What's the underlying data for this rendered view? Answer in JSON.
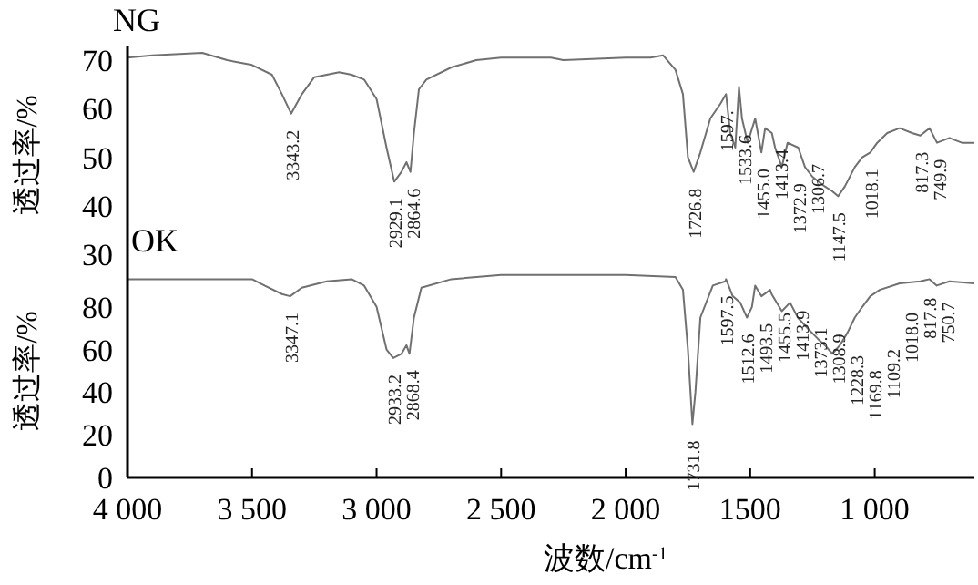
{
  "chart_data": [
    {
      "type": "line",
      "title": "NG",
      "ylabel": "透过率/%",
      "xlim": [
        4000,
        600
      ],
      "ylim": [
        28,
        73
      ],
      "yticks": [
        30,
        40,
        50,
        60,
        70
      ],
      "tick_labels": "y",
      "color": "#707070",
      "x": [
        4000,
        3900,
        3700,
        3600,
        3500,
        3420,
        3380,
        3343,
        3300,
        3250,
        3150,
        3100,
        3050,
        3000,
        2960,
        2929,
        2900,
        2880,
        2864,
        2850,
        2830,
        2800,
        2700,
        2600,
        2500,
        2300,
        2250,
        2000,
        1900,
        1850,
        1800,
        1770,
        1750,
        1727,
        1700,
        1660,
        1620,
        1597,
        1580,
        1560,
        1545,
        1533,
        1510,
        1480,
        1455,
        1440,
        1413,
        1400,
        1373,
        1350,
        1307,
        1280,
        1250,
        1200,
        1170,
        1147,
        1120,
        1080,
        1050,
        1018,
        990,
        950,
        900,
        850,
        817,
        780,
        750,
        700,
        650,
        600
      ],
      "values": [
        70.5,
        71,
        71.5,
        70,
        69,
        67,
        63,
        59,
        63,
        66.5,
        67.5,
        67,
        66,
        62,
        52,
        45,
        47,
        49,
        47,
        55,
        64,
        66,
        68.5,
        70,
        70.5,
        70.5,
        70,
        70.5,
        70.5,
        71,
        68,
        63,
        50,
        47,
        51,
        58,
        61,
        63,
        55,
        52,
        64.5,
        58,
        53,
        58,
        51,
        56,
        55,
        52,
        48,
        53,
        52,
        48,
        46,
        44,
        43,
        42,
        44,
        48,
        50,
        51,
        53,
        55,
        56,
        55,
        54.5,
        56,
        53,
        54,
        53,
        53
      ],
      "annotations": [
        {
          "text": "3343.2",
          "x": 3343,
          "y": 59
        },
        {
          "text": "2929.1",
          "x": 2929,
          "y": 45
        },
        {
          "text": "2864.6",
          "x": 2864,
          "y": 47
        },
        {
          "text": "1726.8",
          "x": 1727,
          "y": 47
        },
        {
          "text": "1597.",
          "x": 1597,
          "y": 63
        },
        {
          "text": "1533.6",
          "x": 1533,
          "y": 58
        },
        {
          "text": "1455.0",
          "x": 1455,
          "y": 51
        },
        {
          "text": "1413.4",
          "x": 1413,
          "y": 55
        },
        {
          "text": "1372.9",
          "x": 1373,
          "y": 48
        },
        {
          "text": "1306.7",
          "x": 1307,
          "y": 52
        },
        {
          "text": "1147.5",
          "x": 1147,
          "y": 42
        },
        {
          "text": "1018.1",
          "x": 1018,
          "y": 51
        },
        {
          "text": "817.3",
          "x": 817,
          "y": 54.5
        },
        {
          "text": "749.9",
          "x": 750,
          "y": 53
        }
      ]
    },
    {
      "type": "line",
      "title": "OK",
      "ylabel": "透过率/%",
      "xlabel": "波数/cm$^{-1}$",
      "xlim": [
        4000,
        600
      ],
      "xticks": [
        {
          "value": 4000,
          "label": "4 000"
        },
        {
          "value": 3500,
          "label": "3 500"
        },
        {
          "value": 3000,
          "label": "3 000"
        },
        {
          "value": 2500,
          "label": "2 500"
        },
        {
          "value": 2000,
          "label": "2 000"
        },
        1500,
        {
          "value": 1000,
          "label": "1 000"
        }
      ],
      "ylim": [
        0,
        100
      ],
      "yticks": [
        0,
        20,
        40,
        60,
        80
      ],
      "color": "#707070",
      "x": [
        4000,
        3500,
        3450,
        3380,
        3347,
        3300,
        3200,
        3100,
        3050,
        3000,
        2960,
        2933,
        2900,
        2880,
        2868,
        2850,
        2820,
        2700,
        2500,
        2000,
        1800,
        1770,
        1750,
        1732,
        1720,
        1700,
        1650,
        1600,
        1597,
        1570,
        1540,
        1513,
        1493,
        1480,
        1455,
        1420,
        1414,
        1373,
        1340,
        1309,
        1270,
        1228,
        1200,
        1170,
        1140,
        1109,
        1080,
        1050,
        1018,
        980,
        900,
        817,
        780,
        751,
        700,
        600
      ],
      "values": [
        93,
        93,
        90,
        86,
        85,
        89,
        92,
        93,
        90,
        80,
        60,
        56,
        58,
        62,
        58,
        75,
        89,
        93,
        95,
        95,
        94,
        88,
        60,
        25,
        40,
        75,
        90,
        92,
        93,
        85,
        82,
        75,
        80,
        90,
        85,
        88,
        86,
        78,
        82,
        75,
        70,
        65,
        62,
        58,
        62,
        68,
        75,
        80,
        85,
        88,
        91,
        92,
        93,
        90,
        92,
        91
      ],
      "annotations": [
        {
          "text": "3347.1",
          "x": 3347,
          "y": 85
        },
        {
          "text": "2933.2",
          "x": 2933,
          "y": 56
        },
        {
          "text": "2868.4",
          "x": 2868,
          "y": 58
        },
        {
          "text": "1731.8",
          "x": 1732,
          "y": 25
        },
        {
          "text": "1597.5",
          "x": 1597,
          "y": 93
        },
        {
          "text": "1512.6",
          "x": 1513,
          "y": 75
        },
        {
          "text": "1493.5",
          "x": 1493,
          "y": 80
        },
        {
          "text": "1455.5",
          "x": 1455,
          "y": 85
        },
        {
          "text": "1413.9",
          "x": 1414,
          "y": 86
        },
        {
          "text": "1373.1",
          "x": 1373,
          "y": 78
        },
        {
          "text": "1308.9",
          "x": 1309,
          "y": 75
        },
        {
          "text": "1228.3",
          "x": 1228,
          "y": 65
        },
        {
          "text": "1169.8",
          "x": 1170,
          "y": 58
        },
        {
          "text": "1109.2",
          "x": 1109,
          "y": 68
        },
        {
          "text": "1018.0",
          "x": 1018,
          "y": 85
        },
        {
          "text": "817.8",
          "x": 817,
          "y": 92
        },
        {
          "text": "750.7",
          "x": 751,
          "y": 90
        }
      ]
    }
  ]
}
